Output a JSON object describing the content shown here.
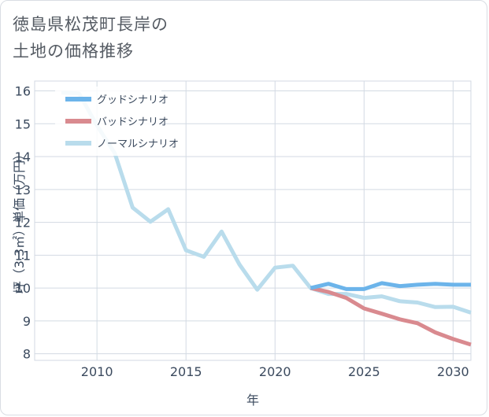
{
  "title": {
    "line1": "徳島県松茂町長岸の",
    "line2": "土地の価格推移"
  },
  "chart_data": {
    "type": "line",
    "xlabel": "年",
    "ylabel": "坪（3.3㎡）単価（万円）",
    "xlim": [
      2006.5,
      2031
    ],
    "ylim": [
      7.8,
      16.3
    ],
    "x_ticks": [
      2010,
      2015,
      2020,
      2025,
      2030
    ],
    "y_ticks": [
      8,
      9,
      10,
      11,
      12,
      13,
      14,
      15,
      16
    ],
    "grid": true,
    "legend_position": "top-left",
    "series": [
      {
        "name": "グッドシナリオ",
        "color": "#6cb4ea",
        "x": [
          2022,
          2023,
          2024,
          2025,
          2026,
          2027,
          2028,
          2029,
          2030,
          2031
        ],
        "y": [
          10.0,
          10.13,
          9.97,
          9.97,
          10.15,
          10.06,
          10.1,
          10.13,
          10.1,
          10.1
        ]
      },
      {
        "name": "バッドシナリオ",
        "color": "#d98a8f",
        "x": [
          2022,
          2023,
          2024,
          2025,
          2026,
          2027,
          2028,
          2029,
          2030,
          2031
        ],
        "y": [
          10.0,
          9.88,
          9.7,
          9.38,
          9.22,
          9.05,
          8.93,
          8.65,
          8.45,
          8.28
        ]
      },
      {
        "name": "ノーマルシナリオ",
        "color": "#b9dcec",
        "x": [
          2008,
          2009,
          2010,
          2011,
          2012,
          2013,
          2014,
          2015,
          2016,
          2017,
          2018,
          2019,
          2020,
          2021,
          2022,
          2023,
          2024,
          2025,
          2026,
          2027,
          2028,
          2029,
          2030,
          2031
        ],
        "y": [
          15.95,
          15.92,
          14.95,
          14.1,
          12.45,
          12.02,
          12.4,
          11.15,
          10.95,
          11.72,
          10.72,
          9.95,
          10.62,
          10.68,
          10.0,
          9.82,
          9.82,
          9.7,
          9.75,
          9.6,
          9.56,
          9.42,
          9.43,
          9.25
        ]
      }
    ]
  }
}
